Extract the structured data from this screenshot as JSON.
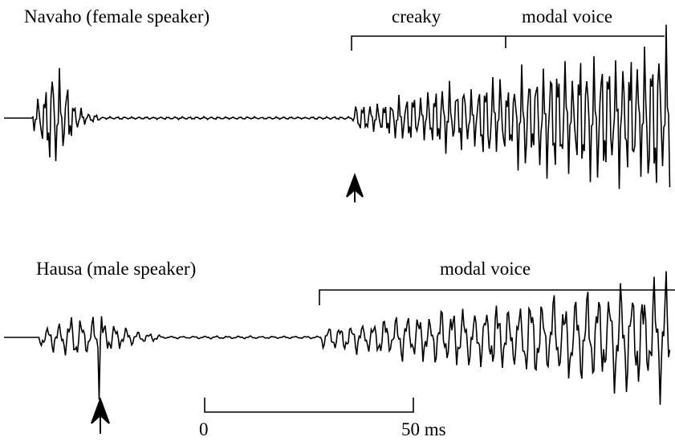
{
  "panels": [
    {
      "label": "Navaho (female speaker)",
      "segments": [
        "creaky",
        "modal voice"
      ]
    },
    {
      "label": "Hausa (male speaker)",
      "segments": [
        "modal voice"
      ]
    }
  ],
  "scale_bar": {
    "start": "0",
    "end": "50 ms"
  }
}
